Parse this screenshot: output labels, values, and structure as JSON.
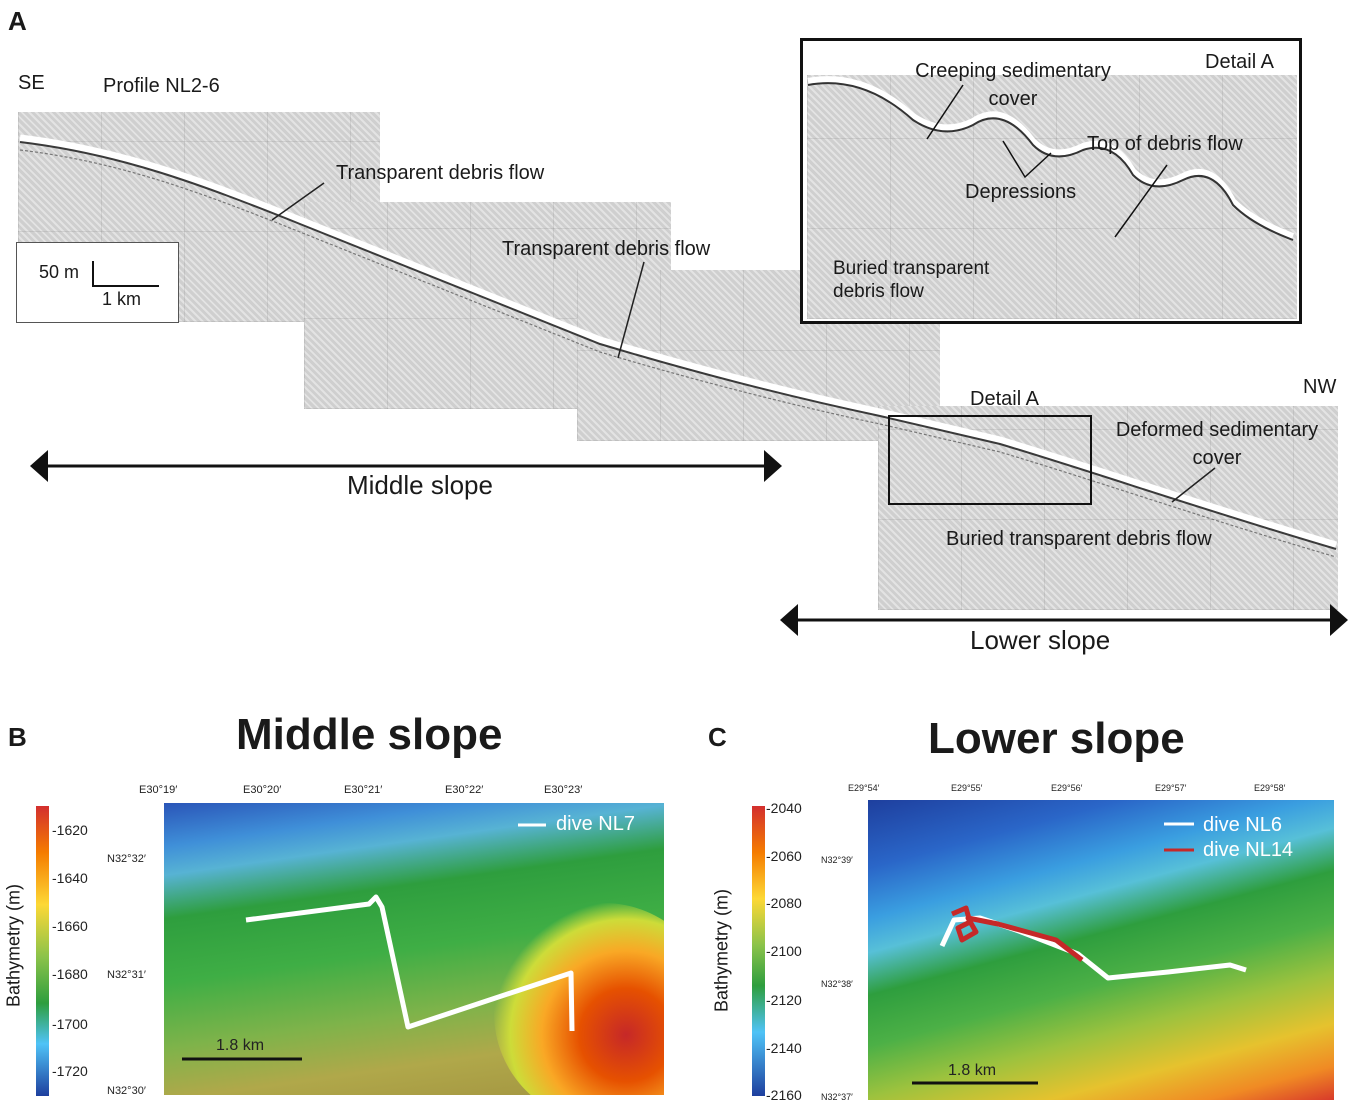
{
  "panel_a": {
    "letter": "A",
    "direction_left": "SE",
    "direction_right": "NW",
    "profile": "Profile NL2-6",
    "scale_vertical": "50 m",
    "scale_horizontal": "1 km",
    "labels": {
      "transparent_debris_flow_1": "Transparent debris flow",
      "transparent_debris_flow_2": "Transparent debris flow",
      "detail_a_marker": "Detail A",
      "deformed_cover": "Deformed sedimentary cover",
      "buried_flow_main": "Buried transparent debris flow"
    },
    "middle_slope": "Middle slope",
    "lower_slope": "Lower slope",
    "inset": {
      "title": "Detail A",
      "creeping": "Creeping sedimentary cover",
      "top_debris": "Top of debris flow",
      "depressions": "Depressions",
      "buried": "Buried transparent debris flow"
    }
  },
  "panel_b": {
    "letter": "B",
    "title": "Middle slope",
    "legend_title": "Bathymetry (m)",
    "legend_ticks": [
      "-1620",
      "-1640",
      "-1660",
      "-1680",
      "-1700",
      "-1720"
    ],
    "lon_ticks": [
      "E30°19′",
      "E30°20′",
      "E30°21′",
      "E30°22′",
      "E30°23′"
    ],
    "lat_ticks": [
      "N32°32′",
      "N32°31′",
      "N32°30′"
    ],
    "dive": "dive NL7",
    "scale": "1.8 km",
    "colors": {
      "dive_track": "#ffffff"
    }
  },
  "panel_c": {
    "letter": "C",
    "title": "Lower slope",
    "legend_title": "Bathymetry (m)",
    "legend_ticks": [
      "-2040",
      "-2060",
      "-2080",
      "-2100",
      "-2120",
      "-2140",
      "-2160"
    ],
    "lon_ticks": [
      "E29°54′",
      "E29°55′",
      "E29°56′",
      "E29°57′",
      "E29°58′"
    ],
    "lat_ticks": [
      "N32°39′",
      "N32°38′",
      "N32°37′"
    ],
    "dive_1": "dive NL6",
    "dive_2": "dive NL14",
    "scale": "1.8 km",
    "colors": {
      "dive_nl6": "#ffffff",
      "dive_nl14": "#c62828"
    }
  }
}
